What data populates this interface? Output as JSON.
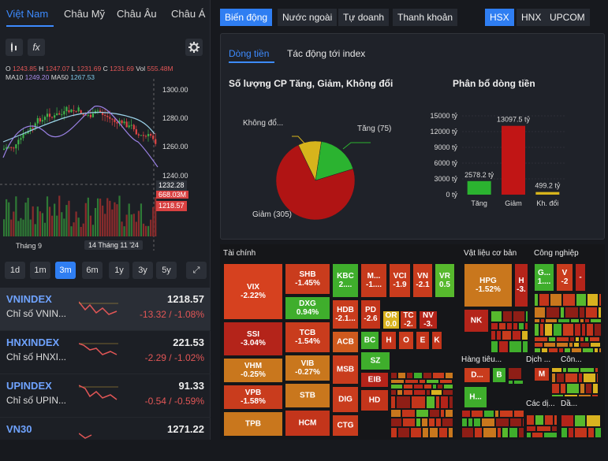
{
  "region_tabs": [
    "Việt Nam",
    "Châu Mỹ",
    "Châu Âu",
    "Châu Á"
  ],
  "toolbar": {
    "candle_icon": "candle-chart-icon",
    "fx_label": "fx",
    "settings_icon": "gear-icon"
  },
  "ohlc": {
    "o_label": "O",
    "o": "1243.85",
    "h_label": "H",
    "h": "1247.07",
    "l_label": "L",
    "l": "1231.69",
    "c_label": "C",
    "c": "1231.69",
    "vol_label": "Vol",
    "vol": "555.48M",
    "ma10_label": "MA10",
    "ma10": "1249.20",
    "ma50_label": "MA50",
    "ma50": "1267.53"
  },
  "price_axis": [
    "1300.00",
    "1280.00",
    "1260.00",
    "1240.00"
  ],
  "price_tags": {
    "cross": "1232.28",
    "vol": "668.03M",
    "last": "1218.57"
  },
  "time_axis": {
    "left": "Tháng 9",
    "cursor": "14 Tháng 11 '24"
  },
  "periods": [
    "1d",
    "1m",
    "3m",
    "6m",
    "1y",
    "3y",
    "5y"
  ],
  "active_period": "3m",
  "expand_icon": "expand-icon",
  "indices": [
    {
      "name": "VNINDEX",
      "desc": "Chỉ số VNIN...",
      "value": "1218.57",
      "change": "-13.32 / -1.08%"
    },
    {
      "name": "HNXINDEX",
      "desc": "Chỉ số HNXI...",
      "value": "221.53",
      "change": "-2.29 / -1.02%"
    },
    {
      "name": "UPINDEX",
      "desc": "Chỉ số UPIN...",
      "value": "91.33",
      "change": "-0.54 / -0.59%"
    },
    {
      "name": "VN30",
      "desc": "",
      "value": "1271.22",
      "change": ""
    }
  ],
  "top_tabs": [
    "Biến động",
    "Nước ngoài",
    "Tự doanh",
    "Thanh khoản"
  ],
  "exchanges": [
    "HSX",
    "HNX",
    "UPCOM"
  ],
  "sub_tabs": [
    "Dòng tiền",
    "Tác động tới index"
  ],
  "pie_title": "Số lượng CP Tăng, Giảm, Không đổi",
  "bar_title": "Phân bổ dòng tiền",
  "chart_data": [
    {
      "type": "pie",
      "title": "Số lượng CP Tăng, Giảm, Không đổi",
      "labels": [
        "Tăng (75)",
        "Giảm (305)",
        "Không đổ..."
      ],
      "values": [
        75,
        305,
        40
      ],
      "colors": [
        "#2bb330",
        "#b01414",
        "#d7b41c"
      ]
    },
    {
      "type": "bar",
      "title": "Phân bổ dòng tiền",
      "categories": [
        "Tăng",
        "Giảm",
        "Kh. đổi"
      ],
      "values": [
        2578.2,
        13097.5,
        499.2
      ],
      "data_labels": [
        "2578.2 tỷ",
        "13097.5 tỷ",
        "499.2 tỷ"
      ],
      "colors": [
        "#2bb330",
        "#c11515",
        "#d7b41c"
      ],
      "ylim": [
        0,
        15000
      ],
      "yticks": [
        "0 tỷ",
        "3000 tỷ",
        "6000 tỷ",
        "9000 tỷ",
        "12000 tỷ",
        "15000 tỷ"
      ]
    }
  ],
  "heatmap": {
    "sectors": [
      "Tài chính",
      "Vật liệu cơ bản",
      "Công nghiệp",
      "Hàng tiêu...",
      "Dịch ...",
      "Côn...",
      "Các dị...",
      "Dầ..."
    ],
    "cells": [
      {
        "label": "VIX\n-2.22%",
        "color": "#d6411f"
      },
      {
        "label": "SHB\n-1.45%",
        "color": "#c93c1d"
      },
      {
        "label": "KBC\n2....",
        "color": "#3fae2c"
      },
      {
        "label": "M...\n-1....",
        "color": "#c53a1c"
      },
      {
        "label": "VCI\n-1.9",
        "color": "#c93c1d"
      },
      {
        "label": "VN\n-2.1",
        "color": "#c93c1d"
      },
      {
        "label": "VR\n0.5",
        "color": "#57b92d"
      },
      {
        "label": "DXG\n0.94%",
        "color": "#3fae2c"
      },
      {
        "label": "SSI\n-3.04%",
        "color": "#b4241a"
      },
      {
        "label": "TCB\n-1.54%",
        "color": "#c93c1d"
      },
      {
        "label": "HDB\n-2.1...",
        "color": "#c93c1d"
      },
      {
        "label": "PD\n-2.6",
        "color": "#c3351b"
      },
      {
        "label": "OR\n0.0",
        "color": "#d9b21f"
      },
      {
        "label": "TC\n-2.",
        "color": "#c3351b"
      },
      {
        "label": "NV\n-3.",
        "color": "#b4241a"
      },
      {
        "label": "ACB",
        "color": "#cf5a1e"
      },
      {
        "label": "BC",
        "color": "#3fae2c"
      },
      {
        "label": "H",
        "color": "#c3351b"
      },
      {
        "label": "O",
        "color": "#c93c1d"
      },
      {
        "label": "E",
        "color": "#c3351b"
      },
      {
        "label": "K",
        "color": "#c3351b"
      },
      {
        "label": "VHM\n-0.25%",
        "color": "#c9771d"
      },
      {
        "label": "VIB\n-0.27%",
        "color": "#c9771d"
      },
      {
        "label": "MSB",
        "color": "#c93c1d"
      },
      {
        "label": "SZ",
        "color": "#3fae2c"
      },
      {
        "label": "VPB\n-1.58%",
        "color": "#c93c1d"
      },
      {
        "label": "STB",
        "color": "#c9771d"
      },
      {
        "label": "DIG",
        "color": "#c93c1d"
      },
      {
        "label": "EIB",
        "color": "#b4241a"
      },
      {
        "label": "HD",
        "color": "#c3351b"
      },
      {
        "label": "TPB",
        "color": "#c9771d"
      },
      {
        "label": "HCM",
        "color": "#c3351b"
      },
      {
        "label": "CTG",
        "color": "#c93c1d"
      },
      {
        "label": "HPG\n-1.52%",
        "color": "#c9771d"
      },
      {
        "label": "H\n-3.",
        "color": "#b4241a"
      },
      {
        "label": "NK",
        "color": "#b4241a"
      },
      {
        "label": "G...\n1....",
        "color": "#3fae2c"
      },
      {
        "label": "V\n-2",
        "color": "#c93c1d"
      },
      {
        "label": "-",
        "color": "#b4241a"
      },
      {
        "label": "D...",
        "color": "#c93c1d"
      },
      {
        "label": "B",
        "color": "#3fae2c"
      },
      {
        "label": "H...",
        "color": "#3fae2c"
      },
      {
        "label": "M",
        "color": "#c3351b"
      }
    ]
  }
}
